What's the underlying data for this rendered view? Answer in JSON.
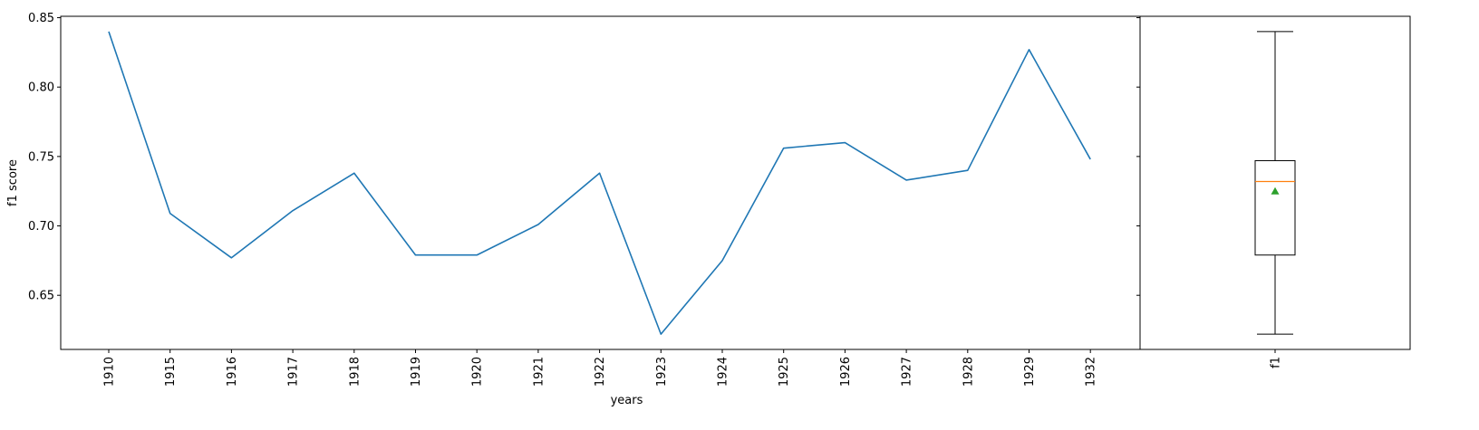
{
  "chart_data": [
    {
      "type": "line",
      "xlabel": "years",
      "ylabel": "f1 score",
      "categories": [
        "1910",
        "1915",
        "1916",
        "1917",
        "1918",
        "1919",
        "1920",
        "1921",
        "1922",
        "1923",
        "1924",
        "1925",
        "1926",
        "1927",
        "1928",
        "1929",
        "1932"
      ],
      "series": [
        {
          "values": [
            0.84,
            0.709,
            0.677,
            0.711,
            0.738,
            0.679,
            0.679,
            0.701,
            0.738,
            0.622,
            0.675,
            0.756,
            0.76,
            0.733,
            0.74,
            0.827,
            0.748
          ],
          "color": "#1f77b4"
        }
      ],
      "ylim": [
        0.611,
        0.851
      ],
      "yticks": [
        0.65,
        0.7,
        0.75,
        0.8,
        0.85
      ],
      "ytick_labels": [
        "0.65",
        "0.70",
        "0.75",
        "0.80",
        "0.85"
      ],
      "grid": false
    },
    {
      "type": "box",
      "categories": [
        "f1"
      ],
      "box": {
        "whisker_low": 0.622,
        "q1": 0.679,
        "median": 0.732,
        "q3": 0.747,
        "whisker_high": 0.84,
        "mean": 0.725
      },
      "colors": {
        "box": "#000000",
        "median": "#ff7f0e",
        "mean": "#2ca02c"
      },
      "ylim": [
        0.611,
        0.851
      ]
    }
  ]
}
